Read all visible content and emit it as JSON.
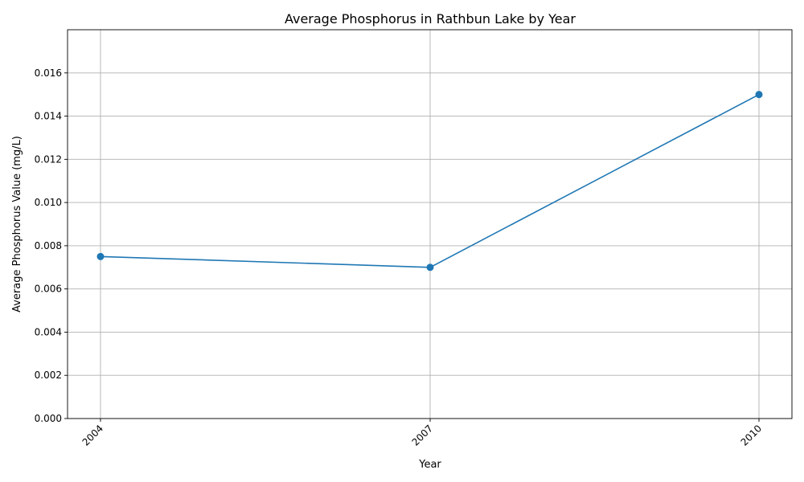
{
  "chart_data": {
    "type": "line",
    "title": "Average Phosphorus in Rathbun Lake by Year",
    "xlabel": "Year",
    "ylabel": "Average Phosphorus Value (mg/L)",
    "categories": [
      "2004",
      "2007",
      "2010"
    ],
    "series": [
      {
        "values": [
          0.0075,
          0.007,
          0.015
        ],
        "color": "#1f77b4"
      }
    ],
    "ylim": [
      0,
      0.018
    ],
    "yticks": [
      "0.000",
      "0.002",
      "0.004",
      "0.006",
      "0.008",
      "0.010",
      "0.012",
      "0.014",
      "0.016"
    ],
    "grid": true,
    "marker": "circle",
    "xtick_rotation": "45 degrees"
  }
}
